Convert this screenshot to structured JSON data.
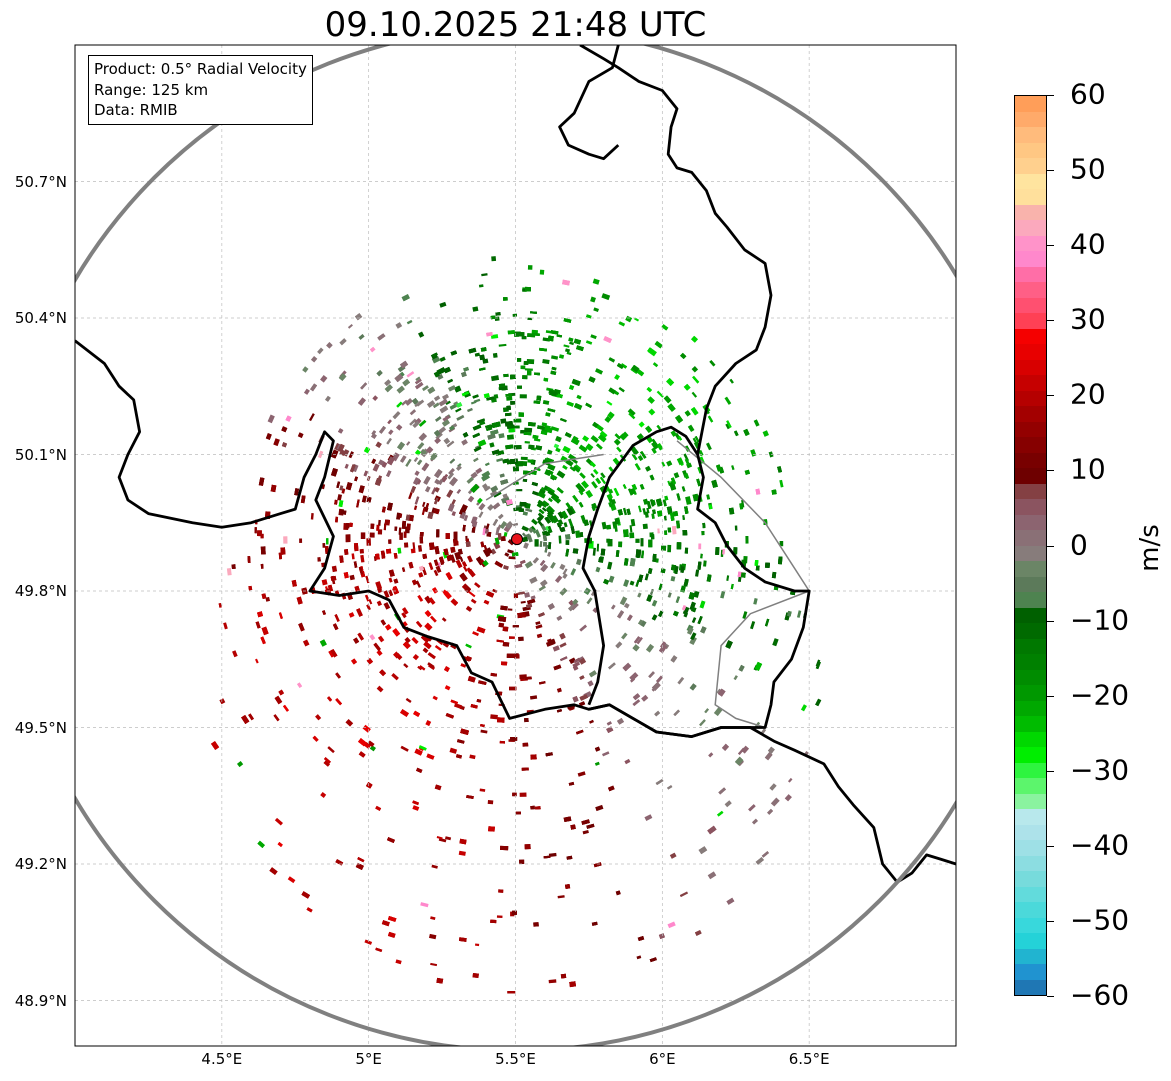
{
  "title": "09.10.2025 21:48 UTC",
  "info_box": {
    "product": "Product: 0.5° Radial Velocity",
    "range": "Range: 125 km",
    "data": "Data: RMIB"
  },
  "map": {
    "lon_range": [
      4.0,
      7.0
    ],
    "lat_range": [
      48.8,
      51.0
    ],
    "lat_ticks": [
      {
        "value": 50.7,
        "label": "50.7°N"
      },
      {
        "value": 50.4,
        "label": "50.4°N"
      },
      {
        "value": 50.1,
        "label": "50.1°N"
      },
      {
        "value": 49.8,
        "label": "49.8°N"
      },
      {
        "value": 49.5,
        "label": "49.5°N"
      },
      {
        "value": 49.2,
        "label": "49.2°N"
      },
      {
        "value": 48.9,
        "label": "48.9°N"
      }
    ],
    "lon_ticks": [
      {
        "value": 4.5,
        "label": "4.5°E"
      },
      {
        "value": 5.0,
        "label": "5°E"
      },
      {
        "value": 5.5,
        "label": "5.5°E"
      },
      {
        "value": 6.0,
        "label": "6°E"
      },
      {
        "value": 6.5,
        "label": "6.5°E"
      }
    ],
    "radar_site": {
      "lon": 5.505,
      "lat": 49.914,
      "color": "#e8141c"
    },
    "range_ring_km": 125,
    "range_ring_color": "#808080",
    "border_color": "#000000",
    "subborder_color": "#808080",
    "borders": [
      [
        [
          4.0,
          50.35
        ],
        [
          4.1,
          50.3
        ],
        [
          4.15,
          50.25
        ],
        [
          4.2,
          50.22
        ],
        [
          4.22,
          50.15
        ],
        [
          4.18,
          50.1
        ],
        [
          4.15,
          50.05
        ],
        [
          4.18,
          50.0
        ],
        [
          4.25,
          49.97
        ],
        [
          4.4,
          49.95
        ],
        [
          4.5,
          49.94
        ],
        [
          4.6,
          49.95
        ],
        [
          4.7,
          49.97
        ],
        [
          4.75,
          49.98
        ],
        [
          4.78,
          50.05
        ],
        [
          4.82,
          50.1
        ],
        [
          4.85,
          50.15
        ],
        [
          4.88,
          50.13
        ],
        [
          4.85,
          50.05
        ],
        [
          4.82,
          50.0
        ],
        [
          4.88,
          49.92
        ],
        [
          4.85,
          49.85
        ],
        [
          4.8,
          49.8
        ],
        [
          4.9,
          49.79
        ],
        [
          5.0,
          49.8
        ],
        [
          5.07,
          49.78
        ],
        [
          5.12,
          49.72
        ],
        [
          5.2,
          49.7
        ],
        [
          5.3,
          49.68
        ],
        [
          5.35,
          49.62
        ],
        [
          5.42,
          49.6
        ],
        [
          5.48,
          49.52
        ],
        [
          5.6,
          49.54
        ],
        [
          5.7,
          49.55
        ],
        [
          5.75,
          49.54
        ],
        [
          5.82,
          49.55
        ],
        [
          5.9,
          49.52
        ],
        [
          5.98,
          49.49
        ],
        [
          6.1,
          49.48
        ],
        [
          6.2,
          49.5
        ],
        [
          6.3,
          49.5
        ],
        [
          6.38,
          49.47
        ],
        [
          6.45,
          49.45
        ],
        [
          6.55,
          49.42
        ],
        [
          6.6,
          49.37
        ],
        [
          6.65,
          49.33
        ],
        [
          6.72,
          49.28
        ],
        [
          6.75,
          49.2
        ],
        [
          6.8,
          49.16
        ],
        [
          6.85,
          49.18
        ],
        [
          6.9,
          49.22
        ],
        [
          6.95,
          49.21
        ],
        [
          7.0,
          49.2
        ]
      ],
      [
        [
          5.75,
          49.55
        ],
        [
          5.78,
          49.6
        ],
        [
          5.8,
          49.68
        ],
        [
          5.77,
          49.8
        ],
        [
          5.73,
          49.85
        ],
        [
          5.75,
          49.92
        ],
        [
          5.78,
          49.98
        ],
        [
          5.82,
          50.05
        ],
        [
          5.9,
          50.12
        ],
        [
          5.98,
          50.15
        ],
        [
          6.03,
          50.16
        ],
        [
          6.08,
          50.14
        ],
        [
          6.12,
          50.1
        ],
        [
          6.14,
          50.05
        ],
        [
          6.12,
          49.98
        ],
        [
          6.18,
          49.95
        ],
        [
          6.22,
          49.9
        ],
        [
          6.28,
          49.85
        ],
        [
          6.35,
          49.82
        ],
        [
          6.45,
          49.8
        ],
        [
          6.5,
          49.8
        ],
        [
          6.48,
          49.72
        ],
        [
          6.44,
          49.65
        ],
        [
          6.38,
          49.6
        ],
        [
          6.37,
          49.55
        ],
        [
          6.35,
          49.5
        ],
        [
          6.3,
          49.5
        ],
        [
          6.2,
          49.5
        ],
        [
          6.1,
          49.48
        ],
        [
          5.98,
          49.49
        ],
        [
          5.9,
          49.52
        ],
        [
          5.82,
          49.55
        ],
        [
          5.75,
          49.54
        ]
      ],
      [
        [
          6.12,
          50.1
        ],
        [
          6.15,
          50.2
        ],
        [
          6.18,
          50.25
        ],
        [
          6.25,
          50.3
        ],
        [
          6.32,
          50.33
        ],
        [
          6.35,
          50.38
        ],
        [
          6.37,
          50.45
        ],
        [
          6.35,
          50.52
        ],
        [
          6.28,
          50.55
        ],
        [
          6.22,
          50.6
        ],
        [
          6.18,
          50.63
        ],
        [
          6.15,
          50.68
        ],
        [
          6.1,
          50.72
        ],
        [
          6.05,
          50.73
        ],
        [
          6.02,
          50.76
        ],
        [
          6.03,
          50.82
        ],
        [
          6.05,
          50.86
        ],
        [
          6.0,
          50.9
        ],
        [
          5.92,
          50.92
        ],
        [
          5.85,
          50.95
        ],
        [
          5.8,
          50.97
        ],
        [
          5.72,
          51.0
        ]
      ],
      [
        [
          5.85,
          51.0
        ],
        [
          5.83,
          50.95
        ],
        [
          5.75,
          50.92
        ],
        [
          5.7,
          50.85
        ],
        [
          5.65,
          50.82
        ],
        [
          5.68,
          50.78
        ],
        [
          5.75,
          50.76
        ],
        [
          5.8,
          50.75
        ],
        [
          5.85,
          50.78
        ]
      ]
    ],
    "subborders": [
      [
        [
          6.05,
          50.13
        ],
        [
          6.2,
          50.05
        ],
        [
          6.35,
          49.95
        ],
        [
          6.45,
          49.85
        ],
        [
          6.5,
          49.8
        ],
        [
          6.3,
          49.75
        ],
        [
          6.2,
          49.68
        ],
        [
          6.18,
          49.55
        ],
        [
          6.25,
          49.52
        ],
        [
          6.35,
          49.5
        ]
      ],
      [
        [
          5.4,
          50.0
        ],
        [
          5.6,
          50.08
        ],
        [
          5.8,
          50.1
        ]
      ]
    ]
  },
  "colorbar": {
    "min": -60,
    "max": 60,
    "unit": "m/s",
    "tick_values": [
      60,
      50,
      40,
      30,
      20,
      10,
      0,
      -10,
      -20,
      -30,
      -40,
      -50,
      -60
    ],
    "tick_labels": [
      "60",
      "50",
      "40",
      "30",
      "20",
      "10",
      "0",
      "−10",
      "−20",
      "−30",
      "−40",
      "−50",
      "−60"
    ],
    "colors": [
      "#ff9e59",
      "#ffaa6a",
      "#ffbb7c",
      "#ffc783",
      "#ffd08e",
      "#ffe49f",
      "#ffe09c",
      "#f9b3ac",
      "#fba9bd",
      "#ff93c9",
      "#ff88cc",
      "#ff6ea7",
      "#ff5f86",
      "#ff5070",
      "#ff4055",
      "#f50000",
      "#e80000",
      "#d80000",
      "#c60000",
      "#b50000",
      "#a30000",
      "#930000",
      "#860000",
      "#780000",
      "#6e0000",
      "#844043",
      "#8b5460",
      "#8c6470",
      "#8a7076",
      "#877c7b",
      "#6b8566",
      "#5c7a5a",
      "#4e8350",
      "#006000",
      "#006a00",
      "#007800",
      "#008000",
      "#008c00",
      "#009800",
      "#00a800",
      "#00bb00",
      "#00d800",
      "#00ee00",
      "#2ef43f",
      "#5cf56c",
      "#8af39f",
      "#b8e8ec",
      "#ade2ea",
      "#9ee0e6",
      "#8cdde1",
      "#77dbdc",
      "#62dbdc",
      "#4bd9da",
      "#38d8dc",
      "#24d2d8",
      "#21b4d0",
      "#2093d0",
      "#1f77b4"
    ]
  }
}
